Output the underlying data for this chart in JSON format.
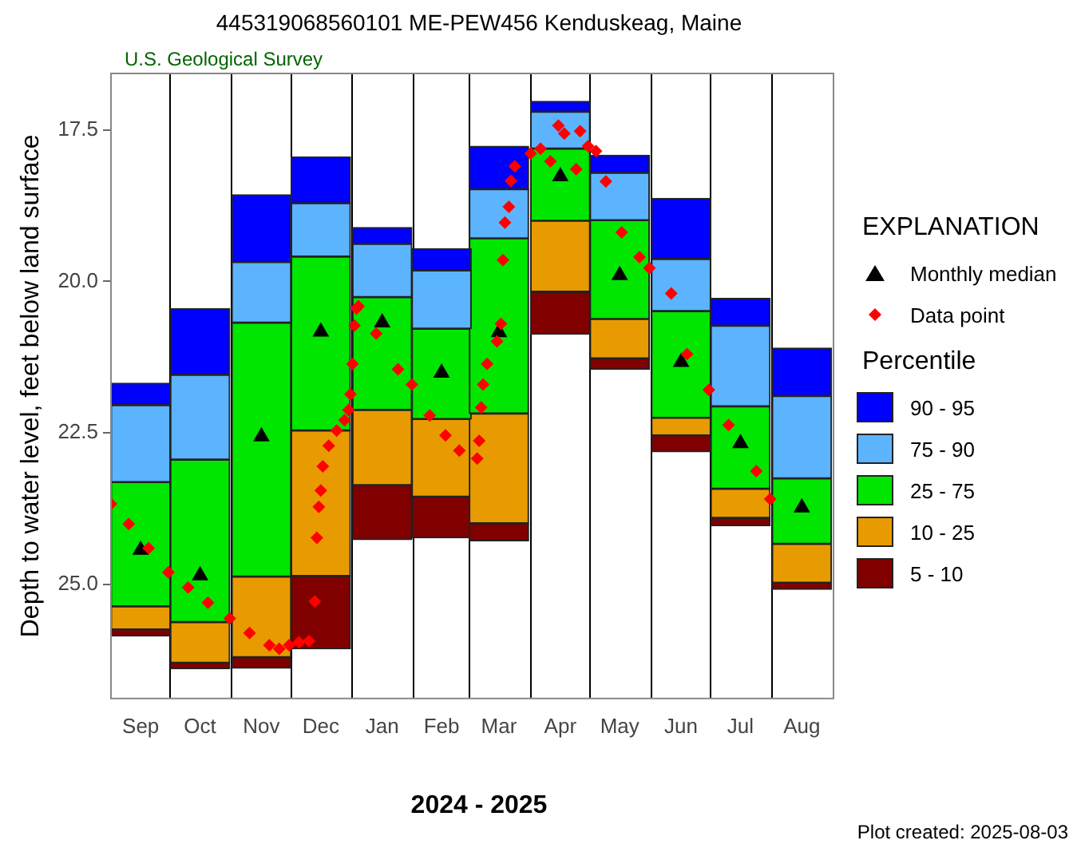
{
  "chart_data": {
    "type": "bar",
    "title": "445319068560101 ME-PEW456 Kenduskeag, Maine",
    "subtitle": "U.S. Geological Survey",
    "xlabel": "2024 - 2025",
    "ylabel": "Depth to water level, feet below land surface",
    "legend_title": "EXPLANATION",
    "annotations": [
      "Percentile",
      "Plot created: 2025-08-03"
    ],
    "x": [
      "2024-09-16",
      "2024-10-16",
      "2024-11-16",
      "2024-12-16",
      "2025-01-16",
      "2025-02-15",
      "2025-03-16",
      "2025-04-16",
      "2025-05-16",
      "2025-06-16",
      "2025-07-16",
      "2025-08-16"
    ],
    "xlim": [
      "2024-09-01",
      "2025-09-01"
    ],
    "xticks": [
      {
        "value": "2024-09-16",
        "label": "Sep"
      },
      {
        "value": "2024-10-01",
        "label": null
      },
      {
        "value": "2024-10-16",
        "label": "Oct"
      },
      {
        "value": "2024-11-01",
        "label": null
      },
      {
        "value": "2024-11-16",
        "label": "Nov"
      },
      {
        "value": "2024-12-01",
        "label": null
      },
      {
        "value": "2024-12-16",
        "label": "Dec"
      },
      {
        "value": "2025-01-01",
        "label": null
      },
      {
        "value": "2025-01-16",
        "label": "Jan"
      },
      {
        "value": "2025-02-01",
        "label": null
      },
      {
        "value": "2025-02-15",
        "label": "Feb"
      },
      {
        "value": "2025-03-01",
        "label": null
      },
      {
        "value": "2025-03-16",
        "label": "Mar"
      },
      {
        "value": "2025-04-01",
        "label": null
      },
      {
        "value": "2025-04-16",
        "label": "Apr"
      },
      {
        "value": "2025-05-01",
        "label": null
      },
      {
        "value": "2025-05-16",
        "label": "May"
      },
      {
        "value": "2025-06-01",
        "label": null
      },
      {
        "value": "2025-06-16",
        "label": "Jun"
      },
      {
        "value": "2025-07-01",
        "label": null
      },
      {
        "value": "2025-07-16",
        "label": "Jul"
      },
      {
        "value": "2025-08-01",
        "label": null
      },
      {
        "value": "2025-08-16",
        "label": "Aug"
      }
    ],
    "ylim": [
      26.88,
      16.57
    ],
    "yticks": [
      17.5,
      {
        "value": 20,
        "label": "20.0"
      },
      22.5,
      {
        "value": 25,
        "label": "25.0"
      }
    ],
    "grid": "x",
    "legend": "right",
    "series": [
      {
        "name": "90 - 95",
        "color": "#0000ff",
        "base": [
          21.68,
          20.45,
          18.57,
          17.95,
          19.11,
          19.46,
          17.77,
          17.03,
          17.92,
          18.63,
          20.28,
          21.1
        ],
        "values": [
          0.36,
          1.09,
          1.11,
          0.76,
          0.27,
          0.36,
          0.71,
          0.17,
          0.29,
          1.0,
          0.45,
          0.79
        ]
      },
      {
        "name": "75 - 90",
        "color": "#5cb4ff",
        "base": [
          22.04,
          21.54,
          19.68,
          18.71,
          19.38,
          19.82,
          18.48,
          17.2,
          18.21,
          19.63,
          20.73,
          21.89
        ],
        "values": [
          1.27,
          1.4,
          1.0,
          0.88,
          0.88,
          0.96,
          0.81,
          0.61,
          0.78,
          0.86,
          1.33,
          1.36
        ]
      },
      {
        "name": "25 - 75",
        "color": "#00e600",
        "base": [
          23.31,
          22.94,
          20.68,
          19.59,
          20.26,
          20.78,
          19.29,
          17.81,
          18.99,
          20.49,
          22.06,
          23.25
        ],
        "values": [
          2.05,
          2.68,
          4.19,
          2.87,
          1.86,
          1.49,
          2.89,
          1.19,
          1.63,
          1.76,
          1.36,
          1.08
        ]
      },
      {
        "name": "10 - 25",
        "color": "#e89b00",
        "base": [
          25.36,
          25.62,
          24.87,
          22.46,
          22.12,
          22.27,
          22.18,
          19.0,
          20.62,
          22.25,
          23.42,
          24.33
        ],
        "values": [
          0.38,
          0.67,
          1.33,
          2.4,
          1.24,
          1.28,
          1.81,
          1.17,
          0.65,
          0.29,
          0.48,
          0.64
        ]
      },
      {
        "name": "5 - 10",
        "color": "#800000",
        "base": [
          25.74,
          26.29,
          26.2,
          24.86,
          23.36,
          23.55,
          23.99,
          20.17,
          21.27,
          22.54,
          23.9,
          24.97
        ],
        "values": [
          0.11,
          0.1,
          0.18,
          1.2,
          0.9,
          0.68,
          0.29,
          0.7,
          0.18,
          0.27,
          0.13,
          0.11
        ]
      },
      {
        "name": "Monthly median",
        "type": "scatter",
        "marker": "triangle",
        "color": "#000000",
        "values": [
          24.43,
          24.85,
          22.56,
          20.83,
          20.68,
          21.51,
          20.84,
          18.27,
          19.9,
          21.33,
          22.67,
          23.73
        ]
      },
      {
        "name": "Data point",
        "type": "scatter",
        "marker": "diamond",
        "color": "#ff0000",
        "x": [
          "2024-09-01",
          "2024-09-10",
          "2024-09-20",
          "2024-09-30",
          "2024-10-10",
          "2024-10-20",
          "2024-10-31",
          "2024-11-10",
          "2024-11-20",
          "2024-11-25",
          "2024-11-30",
          "2024-12-05",
          "2024-12-10",
          "2024-12-13",
          "2024-12-14",
          "2024-12-15",
          "2024-12-16",
          "2024-12-17",
          "2024-12-20",
          "2024-12-24",
          "2024-12-28",
          "2024-12-30",
          "2024-12-31",
          "2025-01-01",
          "2025-01-02",
          "2025-01-03",
          "2025-01-04",
          "2025-01-13",
          "2025-01-24",
          "2025-01-31",
          "2025-02-09",
          "2025-02-17",
          "2025-02-24",
          "2025-03-05",
          "2025-03-06",
          "2025-03-07",
          "2025-03-08",
          "2025-03-10",
          "2025-03-15",
          "2025-03-17",
          "2025-03-18",
          "2025-03-19",
          "2025-03-21",
          "2025-03-22",
          "2025-03-24",
          "2025-04-01",
          "2025-04-06",
          "2025-04-11",
          "2025-04-15",
          "2025-04-18",
          "2025-04-24",
          "2025-04-26",
          "2025-04-30",
          "2025-05-04",
          "2025-05-09",
          "2025-05-17",
          "2025-05-26",
          "2025-05-31",
          "2025-06-11",
          "2025-06-19",
          "2025-06-30",
          "2025-07-10",
          "2025-07-24",
          "2025-07-31"
        ],
        "values": [
          23.67,
          24.0,
          24.4,
          24.8,
          25.05,
          25.3,
          25.56,
          25.8,
          26.0,
          26.06,
          26.0,
          25.95,
          25.93,
          25.28,
          24.23,
          23.72,
          23.45,
          23.05,
          22.71,
          22.46,
          22.29,
          22.12,
          21.86,
          21.36,
          20.73,
          20.45,
          20.41,
          20.86,
          21.45,
          21.7,
          22.21,
          22.54,
          22.79,
          22.92,
          22.63,
          22.08,
          21.7,
          21.36,
          20.99,
          20.7,
          19.65,
          19.03,
          18.77,
          18.34,
          18.1,
          17.89,
          17.81,
          18.02,
          17.43,
          17.56,
          18.15,
          17.52,
          17.77,
          17.85,
          18.35,
          19.19,
          19.6,
          19.78,
          20.2,
          21.2,
          21.79,
          22.37,
          23.13,
          23.59
        ]
      }
    ]
  }
}
